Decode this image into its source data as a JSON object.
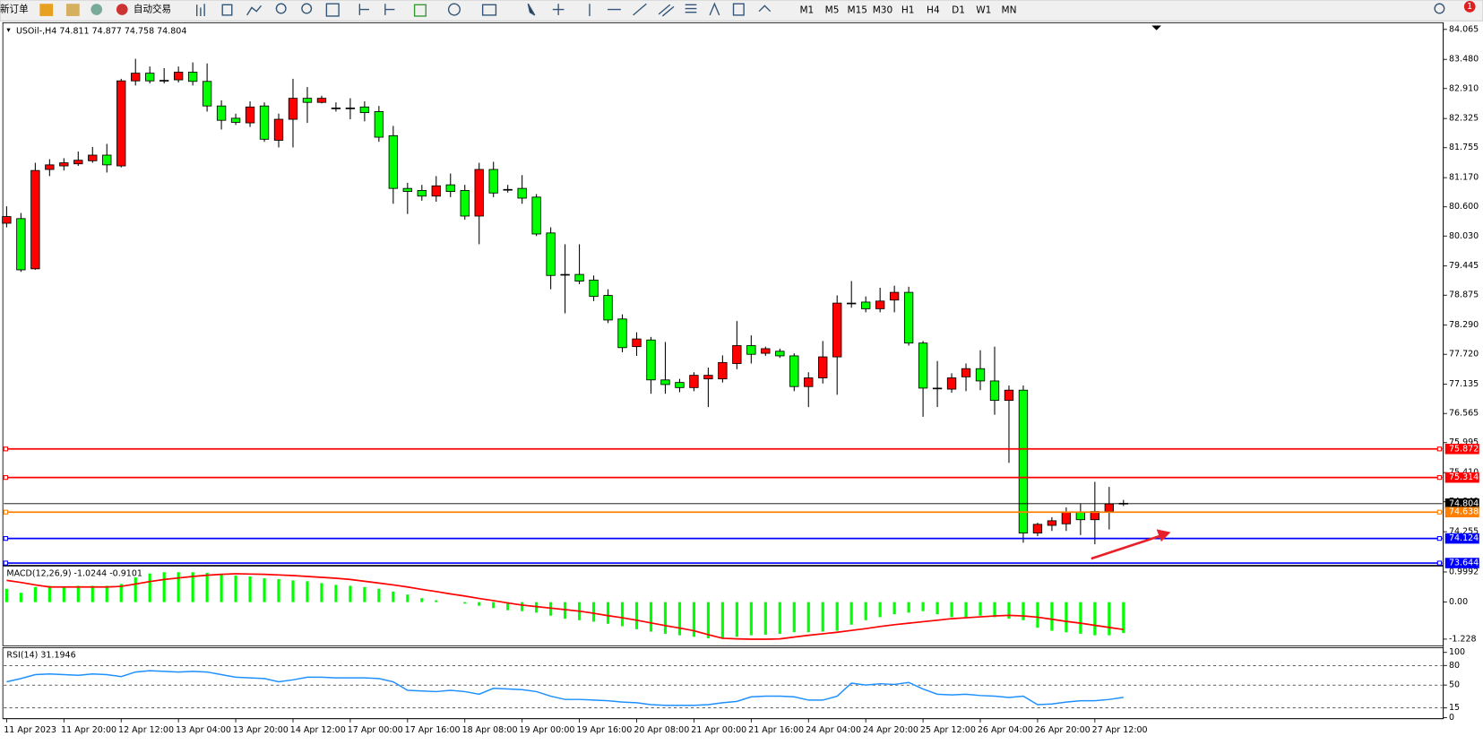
{
  "toolbar": {
    "new_order": "新订单",
    "auto_trading": "自动交易",
    "timeframes": [
      "M1",
      "M5",
      "M15",
      "M30",
      "H1",
      "H4",
      "D1",
      "W1",
      "MN"
    ],
    "notifications": "1"
  },
  "chart_data": [
    {
      "type": "candlestick",
      "title": "USOil-,H4 74.811 74.877 74.758 74.804",
      "categories": [
        "11 Apr 2023",
        null,
        null,
        null,
        "11 Apr 20:00",
        null,
        null,
        null,
        "12 Apr 12:00",
        null,
        null,
        null,
        "13 Apr 04:00",
        null,
        null,
        null,
        "13 Apr 20:00",
        null,
        null,
        null,
        "14 Apr 12:00",
        null,
        null,
        null,
        "17 Apr 00:00",
        null,
        null,
        null,
        "17 Apr 16:00",
        null,
        null,
        null,
        "18 Apr 08:00",
        null,
        null,
        null,
        "19 Apr 00:00",
        null,
        null,
        null,
        "19 Apr 16:00",
        null,
        null,
        null,
        "20 Apr 08:00",
        null,
        null,
        null,
        "21 Apr 00:00",
        null,
        null,
        null,
        "21 Apr 16:00",
        null,
        null,
        null,
        "24 Apr 04:00",
        null,
        null,
        null,
        "24 Apr 20:00",
        null,
        null,
        null,
        "25 Apr 12:00",
        null,
        null,
        null,
        "26 Apr 04:00",
        null,
        null,
        null,
        "26 Apr 20:00",
        null,
        null,
        null,
        "27 Apr 12:00",
        null,
        null
      ],
      "open": [
        80.28,
        80.37,
        79.39,
        81.33,
        81.4,
        81.44,
        81.5,
        81.61,
        81.4,
        83.06,
        83.21,
        83.06,
        83.08,
        83.23,
        83.05,
        82.57,
        82.33,
        82.24,
        82.57,
        81.9,
        82.31,
        82.72,
        82.64,
        82.53,
        82.53,
        82.55,
        82.46,
        81.99,
        80.96,
        80.92,
        80.81,
        81.03,
        80.92,
        80.42,
        81.33,
        80.94,
        80.96,
        80.79,
        80.09,
        79.28,
        79.28,
        79.17,
        78.87,
        78.41,
        77.87,
        78.0,
        77.22,
        77.17,
        77.07,
        77.24,
        77.24,
        77.54,
        77.89,
        77.74,
        77.78,
        77.69,
        77.09,
        77.26,
        77.67,
        78.72,
        78.74,
        78.61,
        78.78,
        78.93,
        77.94,
        77.06,
        77.04,
        77.28,
        77.44,
        77.2,
        76.82,
        77.02,
        74.23,
        74.38,
        74.41,
        74.64,
        74.49,
        74.65,
        74.811
      ],
      "high": [
        80.61,
        80.48,
        81.46,
        81.53,
        81.55,
        81.68,
        81.77,
        81.83,
        83.1,
        83.49,
        83.34,
        83.31,
        83.34,
        83.42,
        83.4,
        82.68,
        82.42,
        82.66,
        82.64,
        82.42,
        83.1,
        82.94,
        82.77,
        82.64,
        82.72,
        82.66,
        82.57,
        82.18,
        81.07,
        81.03,
        81.2,
        81.25,
        81.03,
        81.46,
        81.48,
        81.03,
        81.22,
        80.85,
        80.2,
        79.87,
        79.87,
        79.26,
        78.99,
        78.5,
        78.15,
        78.06,
        77.96,
        77.24,
        77.37,
        77.46,
        77.7,
        78.37,
        78.09,
        77.87,
        77.83,
        77.74,
        77.37,
        77.98,
        78.87,
        79.15,
        78.85,
        79.02,
        79.06,
        79.04,
        77.98,
        77.59,
        77.35,
        77.54,
        77.8,
        77.87,
        77.11,
        77.11,
        74.43,
        74.54,
        74.73,
        74.8,
        75.23,
        75.13,
        74.877
      ],
      "low": [
        80.2,
        79.33,
        79.37,
        81.2,
        81.31,
        81.4,
        81.46,
        81.27,
        81.37,
        82.97,
        83.01,
        83.01,
        83.03,
        82.97,
        82.46,
        82.11,
        82.2,
        82.16,
        81.87,
        81.76,
        81.76,
        82.24,
        82.62,
        82.46,
        82.31,
        82.27,
        81.87,
        80.66,
        80.46,
        80.72,
        80.7,
        80.79,
        80.35,
        79.87,
        80.79,
        80.88,
        80.66,
        80.03,
        78.99,
        78.52,
        79.09,
        78.76,
        78.33,
        77.76,
        77.69,
        76.95,
        76.95,
        76.98,
        77.0,
        76.69,
        77.17,
        77.43,
        77.54,
        77.69,
        77.65,
        77.0,
        76.69,
        77.15,
        76.93,
        78.63,
        78.54,
        78.54,
        78.54,
        77.89,
        76.5,
        76.69,
        76.97,
        77.0,
        77.02,
        76.54,
        75.6,
        74.04,
        74.17,
        74.27,
        74.27,
        74.19,
        74.01,
        74.3,
        74.758
      ],
      "close": [
        80.41,
        79.37,
        81.31,
        81.42,
        81.46,
        81.51,
        81.61,
        81.42,
        83.06,
        83.21,
        83.06,
        83.07,
        83.23,
        83.05,
        82.57,
        82.29,
        82.25,
        82.55,
        81.92,
        82.31,
        82.72,
        82.64,
        82.72,
        82.52,
        82.53,
        82.44,
        81.96,
        80.96,
        80.9,
        80.81,
        81.01,
        80.9,
        80.42,
        81.33,
        80.87,
        80.94,
        80.77,
        80.07,
        79.26,
        79.28,
        79.15,
        78.85,
        78.39,
        77.85,
        78.02,
        77.22,
        77.13,
        77.07,
        77.31,
        77.31,
        77.56,
        77.89,
        77.72,
        77.83,
        77.69,
        77.09,
        77.26,
        77.67,
        78.72,
        78.72,
        78.61,
        78.76,
        78.93,
        77.94,
        77.06,
        77.06,
        77.26,
        77.44,
        77.2,
        76.82,
        77.02,
        74.23,
        74.4,
        74.47,
        74.64,
        74.49,
        74.65,
        74.8,
        74.804
      ],
      "up_color": "#ff0000",
      "down_color": "#00ff00",
      "ylim": [
        73.6,
        84.14
      ],
      "yticks": [
        84.065,
        {
          "value": 83.48,
          "label": "83.480"
        },
        {
          "value": 82.91,
          "label": "82.910"
        },
        82.325,
        81.755,
        {
          "value": 81.17,
          "label": "81.170"
        },
        {
          "value": 80.6,
          "label": "80.600"
        },
        {
          "value": 80.03,
          "label": "80.030"
        },
        79.445,
        78.875,
        {
          "value": 78.29,
          "label": "78.290"
        },
        {
          "value": 77.72,
          "label": "77.720"
        },
        77.135,
        76.565,
        75.995,
        {
          "value": 75.41,
          "label": "75.410"
        },
        {
          "value": 74.84,
          "label": "74.840"
        },
        74.255
      ],
      "hlines": [
        {
          "value": 75.872,
          "color": "#ff0000"
        },
        {
          "value": 75.314,
          "color": "#ff0000"
        },
        {
          "value": 74.804,
          "color": "#000000"
        },
        {
          "value": 74.638,
          "color": "#ff8000"
        },
        {
          "value": 74.124,
          "color": "#0000ff"
        },
        {
          "value": 73.644,
          "color": "#0000ff"
        }
      ]
    },
    {
      "type": "macd",
      "title": "MACD(12,26,9) -1.0244 -0.9101",
      "histogram": [
        0.44,
        0.31,
        0.5,
        0.54,
        0.5,
        0.54,
        0.54,
        0.54,
        0.6,
        0.82,
        0.95,
        0.99,
        0.99,
        0.99,
        0.97,
        0.94,
        0.88,
        0.85,
        0.79,
        0.76,
        0.72,
        0.69,
        0.63,
        0.57,
        0.54,
        0.5,
        0.44,
        0.35,
        0.25,
        0.13,
        0.06,
        0.0,
        -0.05,
        -0.12,
        -0.2,
        -0.27,
        -0.3,
        -0.35,
        -0.45,
        -0.55,
        -0.6,
        -0.65,
        -0.72,
        -0.8,
        -0.9,
        -0.98,
        -1.05,
        -1.1,
        -1.15,
        -1.2,
        -1.22,
        -1.15,
        -1.1,
        -1.08,
        -1.05,
        -1.0,
        -1.0,
        -0.98,
        -0.95,
        -0.75,
        -0.6,
        -0.5,
        -0.4,
        -0.35,
        -0.3,
        -0.4,
        -0.5,
        -0.5,
        -0.45,
        -0.5,
        -0.55,
        -0.6,
        -0.85,
        -0.95,
        -1.0,
        -1.05,
        -1.1,
        -1.1,
        -1.0244
      ],
      "signal": [
        0.72,
        0.65,
        0.57,
        0.5,
        0.5,
        0.5,
        0.5,
        0.5,
        0.52,
        0.6,
        0.68,
        0.75,
        0.8,
        0.85,
        0.89,
        0.92,
        0.94,
        0.93,
        0.92,
        0.9,
        0.88,
        0.85,
        0.82,
        0.79,
        0.75,
        0.69,
        0.63,
        0.57,
        0.5,
        0.42,
        0.35,
        0.27,
        0.2,
        0.12,
        0.05,
        -0.03,
        -0.1,
        -0.15,
        -0.2,
        -0.25,
        -0.3,
        -0.37,
        -0.45,
        -0.52,
        -0.6,
        -0.69,
        -0.78,
        -0.86,
        -0.95,
        -1.08,
        -1.2,
        -1.22,
        -1.23,
        -1.23,
        -1.22,
        -1.16,
        -1.1,
        -1.05,
        -1.0,
        -0.94,
        -0.88,
        -0.81,
        -0.75,
        -0.7,
        -0.65,
        -0.6,
        -0.55,
        -0.52,
        -0.49,
        -0.46,
        -0.44,
        -0.46,
        -0.5,
        -0.57,
        -0.64,
        -0.7,
        -0.77,
        -0.84,
        -0.9101
      ],
      "histogram_color": "#00ff00",
      "signal_color": "#ff0000",
      "ylim": [
        -1.417,
        1.157
      ],
      "yticks": [
        0.9992,
        {
          "value": 0,
          "label": "0.00"
        },
        -1.228
      ]
    },
    {
      "type": "line",
      "title": "RSI(14) 31.1946",
      "values": [
        55,
        60,
        66,
        67,
        66,
        65,
        67,
        66,
        63,
        70,
        72,
        71,
        70,
        71,
        70,
        66,
        62,
        61,
        60,
        55,
        58,
        62,
        62,
        61,
        61,
        61,
        60,
        55,
        42,
        41,
        40,
        42,
        40,
        36,
        45,
        44,
        43,
        40,
        33,
        28,
        28,
        27,
        26,
        24,
        23,
        20,
        19,
        19,
        19,
        20,
        23,
        25,
        32,
        33,
        33,
        32,
        27,
        27,
        33,
        53,
        50,
        52,
        51,
        54,
        44,
        36,
        35,
        36,
        34,
        33,
        31,
        33,
        20,
        21,
        24,
        26,
        26,
        28,
        31.1946
      ],
      "color": "#1e90ff",
      "grid": true,
      "ylim": [
        0,
        100
      ],
      "yticks": [
        0,
        15,
        50,
        80,
        100
      ]
    }
  ]
}
